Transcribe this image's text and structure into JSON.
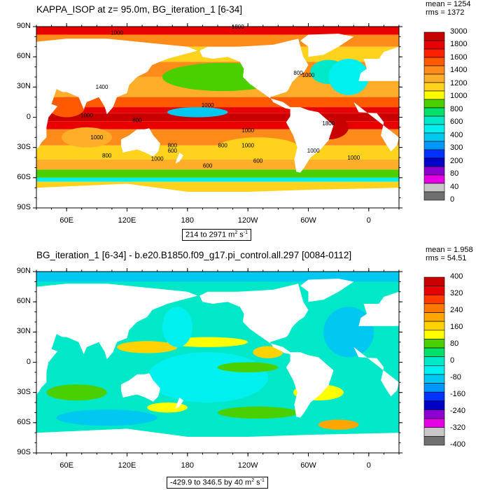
{
  "chart_data": [
    {
      "type": "heatmap",
      "title": "KAPPA_ISOP at z=  95.0m, BG_iteration_1 [6-34]",
      "stats": {
        "mean": "mean = 1254",
        "rms": "rms = 1372"
      },
      "range_label": {
        "text": "214 to 2971 m",
        "exp": "2",
        "suffix": " s",
        "exp2": "-1"
      },
      "xticks": [
        "60E",
        "120E",
        "180",
        "120W",
        "60W",
        "0"
      ],
      "yticks": [
        "90N",
        "60N",
        "30N",
        "0",
        "30S",
        "60S",
        "90S"
      ],
      "colorbar": {
        "labels": [
          "3000",
          "1800",
          "1600",
          "1400",
          "1200",
          "1000",
          "800",
          "600",
          "400",
          "300",
          "200",
          "80",
          "40",
          "0"
        ],
        "colors": [
          "#c80000",
          "#e80000",
          "#ff2000",
          "#ff5a00",
          "#ff8c1a",
          "#ffae2a",
          "#ffd21e",
          "#ffff00",
          "#4ad000",
          "#00e06a",
          "#00e8c8",
          "#00f0f0",
          "#00c8f0",
          "#0096ff",
          "#0032ff",
          "#0000c8",
          "#8c00d2",
          "#e600e6",
          "#c8c8c8",
          "#707070"
        ]
      },
      "contour_labels": [
        "1800",
        "1000",
        "800",
        "1000",
        "1400",
        "1000",
        "800",
        "1000",
        "1800",
        "1000",
        "1000",
        "800",
        "1000",
        "600",
        "800",
        "1000",
        "1000",
        "600",
        "800",
        "1000",
        "600"
      ]
    },
    {
      "type": "heatmap",
      "title": "BG_iteration_1 [6-34] - b.e20.B1850.f09_g17.pi_control.all.297 [0084-0112]",
      "stats": {
        "mean": "mean = 1.958",
        "rms": "rms = 54.51"
      },
      "range_label": {
        "text": "-429.9 to 346.5 by 40 m",
        "exp": "2",
        "suffix": " s",
        "exp2": "-1"
      },
      "xticks": [
        "60E",
        "120E",
        "180",
        "120W",
        "60W",
        "0"
      ],
      "yticks": [
        "90N",
        "60N",
        "30N",
        "0",
        "30S",
        "60S",
        "90S"
      ],
      "colorbar": {
        "labels": [
          "400",
          "320",
          "240",
          "160",
          "80",
          "0",
          "-80",
          "-160",
          "-240",
          "-320",
          "-400"
        ],
        "colors": [
          "#c80000",
          "#e80000",
          "#ff3c00",
          "#ff7800",
          "#ffa500",
          "#ffd200",
          "#ffff00",
          "#4ad000",
          "#00e06a",
          "#00e8c8",
          "#00f0f0",
          "#00c8f0",
          "#0096ff",
          "#0032ff",
          "#0000c8",
          "#8c00d2",
          "#e600e6",
          "#c8c8c8",
          "#707070"
        ]
      }
    }
  ],
  "colors": {
    "land": "#ffffff",
    "frame": "#000000"
  }
}
